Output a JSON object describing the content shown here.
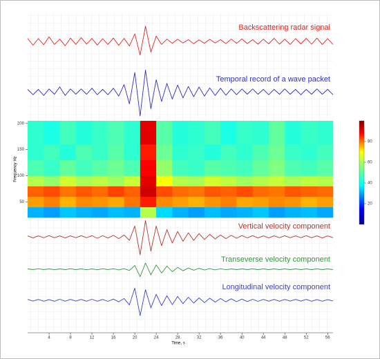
{
  "chart_data": {
    "type": "line",
    "xlabel": "Time, s",
    "x": [
      0,
      1,
      2,
      3,
      4,
      5,
      6,
      7,
      8,
      9,
      10,
      11,
      12,
      13,
      14,
      15,
      16,
      17,
      18,
      19,
      20,
      21,
      22,
      23,
      24,
      25,
      26,
      27,
      28,
      29,
      30,
      31,
      32,
      33,
      34,
      35,
      36,
      37,
      38,
      39,
      40,
      41,
      42,
      43,
      44,
      45,
      46,
      47,
      48,
      49,
      50,
      51,
      52,
      53,
      54,
      55,
      56,
      57
    ],
    "xlim": [
      0,
      57
    ],
    "xticks": [
      4,
      8,
      12,
      16,
      20,
      24,
      28,
      32,
      36,
      40,
      44,
      48,
      52,
      56
    ],
    "ylim": [
      -1,
      1
    ],
    "series": [
      {
        "name": "Backscattering radar signal",
        "color": "#e8211c",
        "values": [
          0.2,
          -0.25,
          0.18,
          -0.22,
          0.3,
          -0.2,
          0.15,
          -0.28,
          0.22,
          -0.2,
          0.25,
          -0.18,
          0.2,
          -0.24,
          0.18,
          -0.2,
          0.22,
          -0.26,
          0.2,
          -0.3,
          0.5,
          -0.9,
          1,
          -0.7,
          0.35,
          -0.2,
          0.15,
          -0.12,
          0.14,
          -0.1,
          0.12,
          -0.15,
          0.1,
          -0.12,
          0.14,
          -0.1,
          0.12,
          -0.14,
          0.15,
          -0.12,
          0.16,
          -0.14,
          0.12,
          -0.18,
          0.15,
          -0.16,
          0.2,
          -0.18,
          0.15,
          -0.2,
          0.18,
          -0.16,
          0.2,
          -0.18,
          0.22,
          -0.2,
          0.18,
          -0.2
        ]
      },
      {
        "name": "Temporal record of a wave packet",
        "color": "#2b2fc0",
        "values": [
          0.1,
          -0.12,
          0.1,
          -0.15,
          0.12,
          -0.1,
          0.2,
          -0.15,
          0.12,
          -0.1,
          0.12,
          -0.1,
          0.15,
          -0.12,
          0.1,
          -0.12,
          0.15,
          -0.18,
          0.3,
          -0.5,
          0.8,
          -1,
          0.9,
          -0.7,
          0.5,
          -0.4,
          0.35,
          -0.3,
          0.28,
          -0.25,
          0.22,
          -0.2,
          0.2,
          -0.18,
          0.16,
          -0.15,
          0.15,
          -0.14,
          0.12,
          -0.12,
          0.12,
          -0.1,
          0.12,
          -0.1,
          0.1,
          -0.12,
          0.1,
          -0.1,
          0.12,
          -0.1,
          0.1,
          -0.12,
          0.1,
          -0.1,
          0.12,
          -0.1,
          0.1,
          -0.12
        ]
      },
      {
        "name": "Vertical velocity component",
        "color": "#b7342c",
        "values": [
          0.05,
          -0.06,
          0.05,
          -0.05,
          0.06,
          -0.05,
          0.05,
          -0.06,
          0.05,
          -0.05,
          0.06,
          -0.05,
          0.06,
          -0.08,
          0.06,
          -0.07,
          0.08,
          -0.1,
          0.1,
          -0.2,
          0.6,
          -1,
          0.9,
          -0.8,
          0.6,
          -0.5,
          0.4,
          -0.35,
          0.3,
          -0.25,
          0.22,
          -0.2,
          0.18,
          -0.15,
          0.14,
          -0.12,
          0.1,
          -0.1,
          0.08,
          -0.08,
          0.07,
          -0.06,
          0.06,
          -0.06,
          0.05,
          -0.06,
          0.05,
          -0.05,
          0.06,
          -0.05,
          0.05,
          -0.05,
          0.06,
          -0.05,
          0.05,
          -0.06,
          0.05,
          -0.05
        ]
      },
      {
        "name": "Transeverse velocity component",
        "color": "#2e9a3a",
        "values": [
          0.03,
          -0.03,
          0.04,
          -0.03,
          0.03,
          -0.04,
          0.03,
          -0.03,
          0.04,
          -0.03,
          0.03,
          -0.04,
          0.03,
          -0.04,
          0.04,
          -0.03,
          0.04,
          -0.05,
          0.05,
          -0.1,
          0.3,
          -0.6,
          0.5,
          -0.45,
          0.35,
          -0.3,
          0.25,
          -0.2,
          0.15,
          -0.12,
          0.1,
          -0.08,
          0.07,
          -0.06,
          0.05,
          -0.05,
          0.04,
          -0.04,
          0.03,
          -0.03,
          0.03,
          -0.03,
          0.03,
          -0.03,
          0.03,
          -0.03,
          0.03,
          -0.03,
          0.03,
          -0.03,
          0.03,
          -0.03,
          0.03,
          -0.03,
          0.03,
          -0.03,
          0.03,
          -0.03
        ]
      },
      {
        "name": "Longitudinal velocity component",
        "color": "#3a3fd0",
        "values": [
          0.06,
          -0.05,
          0.06,
          -0.06,
          0.05,
          -0.06,
          0.07,
          -0.06,
          0.06,
          -0.05,
          0.06,
          -0.06,
          0.07,
          -0.06,
          0.06,
          -0.07,
          0.08,
          -0.1,
          0.12,
          -0.3,
          0.8,
          -1,
          0.7,
          -0.5,
          0.4,
          -0.35,
          0.3,
          -0.28,
          0.25,
          -0.22,
          0.2,
          -0.18,
          0.16,
          -0.15,
          0.14,
          -0.12,
          0.12,
          -0.1,
          0.1,
          -0.09,
          0.08,
          -0.08,
          0.07,
          -0.07,
          0.06,
          -0.06,
          0.06,
          -0.06,
          0.06,
          -0.05,
          0.06,
          -0.05,
          0.06,
          -0.06,
          0.05,
          -0.06,
          0.05,
          -0.05
        ]
      }
    ],
    "spectrogram": {
      "type": "heatmap",
      "ylabel": "Frequency Hz",
      "ylim": [
        20,
        205
      ],
      "yticks": [
        50,
        100,
        150,
        200
      ],
      "time_edges": [
        0,
        3,
        6,
        9,
        12,
        15,
        18,
        21,
        24,
        27,
        30,
        33,
        36,
        39,
        42,
        45,
        48,
        51,
        54,
        57
      ],
      "freq_edges": [
        20,
        40,
        60,
        80,
        100,
        130,
        160,
        205
      ],
      "zlim": [
        0,
        100
      ],
      "zticks": [
        20,
        40,
        60,
        80
      ],
      "z": [
        [
          30,
          28,
          32,
          30,
          29,
          31,
          30,
          55,
          34,
          30,
          28,
          31,
          29,
          30,
          32,
          28,
          30,
          31,
          29
        ],
        [
          72,
          75,
          70,
          74,
          73,
          71,
          76,
          85,
          74,
          72,
          70,
          73,
          75,
          71,
          72,
          74,
          73,
          70,
          72
        ],
        [
          78,
          80,
          76,
          79,
          77,
          81,
          78,
          92,
          80,
          77,
          76,
          79,
          78,
          80,
          77,
          76,
          79,
          78,
          77
        ],
        [
          55,
          52,
          58,
          54,
          56,
          53,
          57,
          90,
          62,
          55,
          54,
          58,
          56,
          53,
          55,
          57,
          54,
          56,
          55
        ],
        [
          45,
          43,
          47,
          44,
          46,
          48,
          45,
          88,
          52,
          44,
          43,
          46,
          45,
          44,
          47,
          50,
          45,
          44,
          46
        ],
        [
          42,
          44,
          41,
          45,
          43,
          46,
          42,
          85,
          48,
          42,
          43,
          41,
          44,
          42,
          45,
          48,
          43,
          42,
          44
        ],
        [
          42,
          40,
          44,
          41,
          43,
          45,
          42,
          90,
          46,
          41,
          42,
          44,
          40,
          43,
          42,
          47,
          41,
          43,
          42
        ]
      ]
    }
  }
}
